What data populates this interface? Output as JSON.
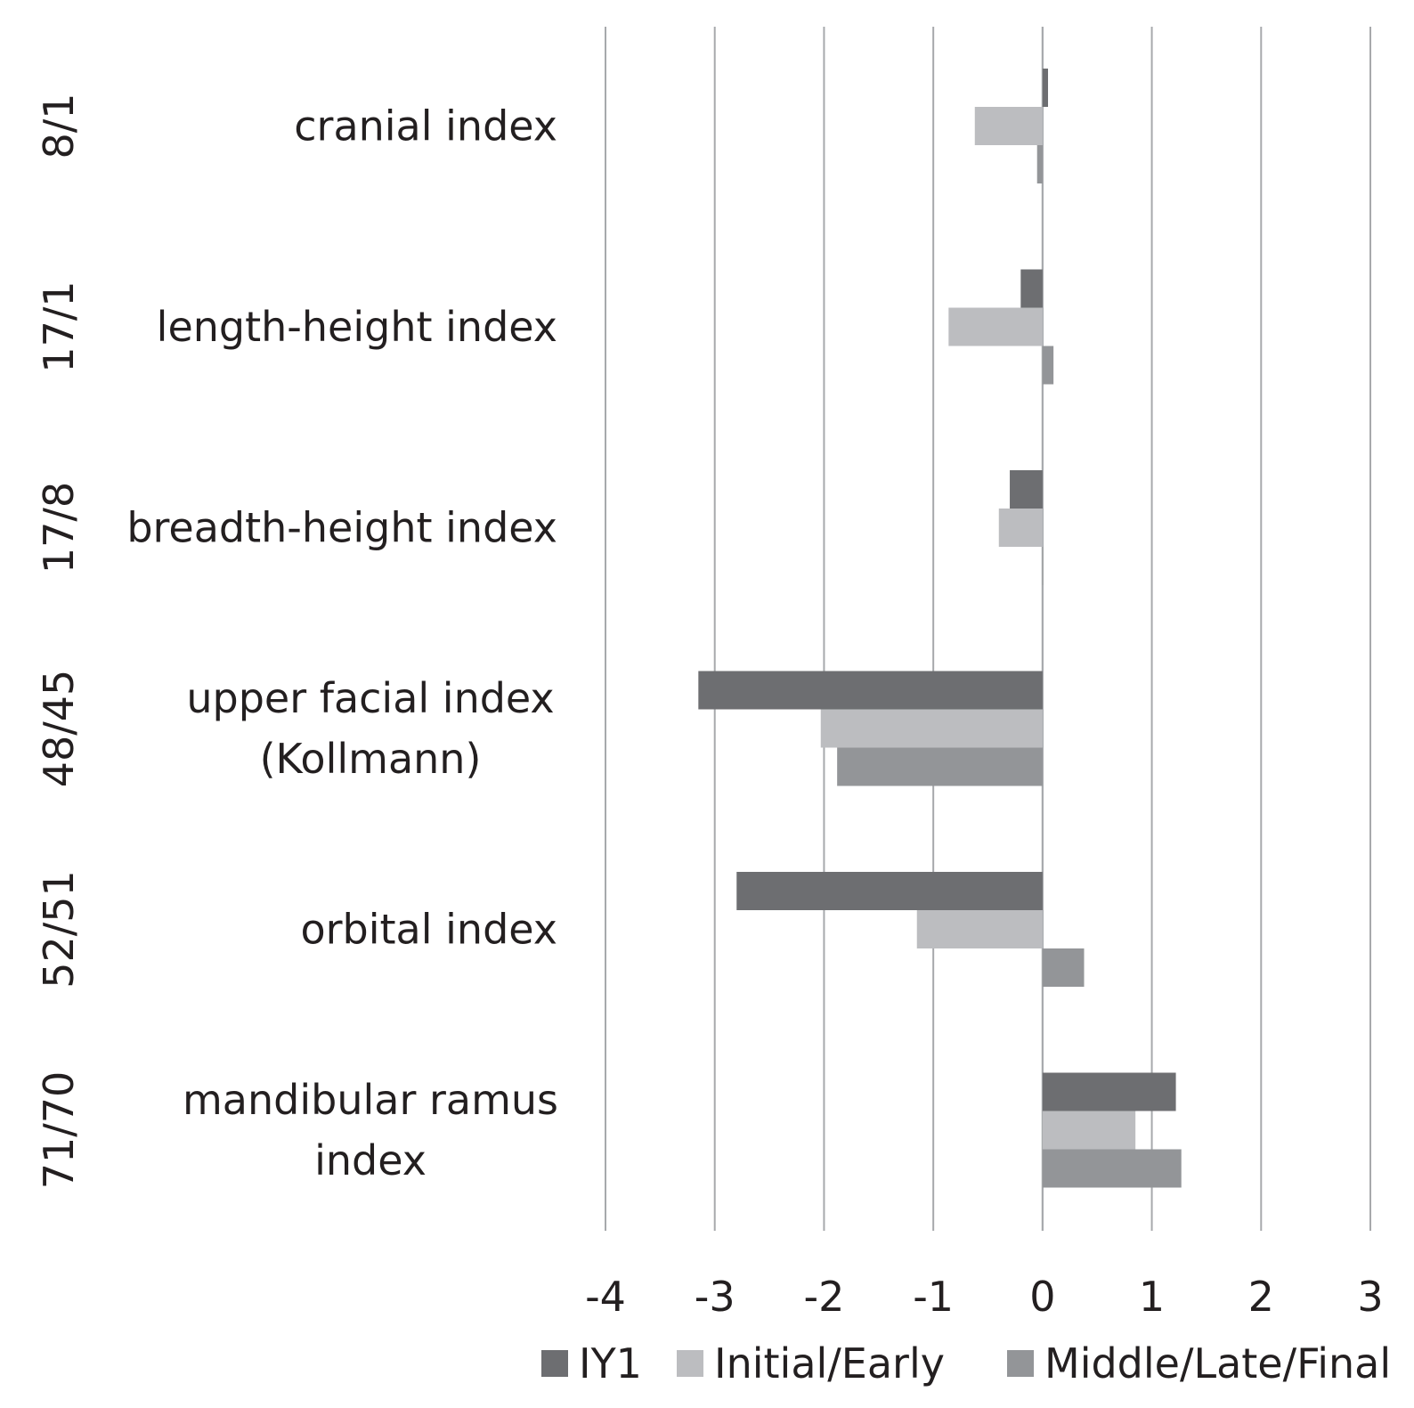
{
  "chart_data": {
    "type": "bar",
    "orientation": "horizontal",
    "categories": [
      {
        "code": "8/1",
        "label_lines": [
          "cranial index"
        ]
      },
      {
        "code": "17/1",
        "label_lines": [
          "length-height index"
        ]
      },
      {
        "code": "17/8",
        "label_lines": [
          "breadth-height index"
        ]
      },
      {
        "code": "48/45",
        "label_lines": [
          "upper facial index",
          "(Kollmann)"
        ]
      },
      {
        "code": "52/51",
        "label_lines": [
          "orbital index"
        ]
      },
      {
        "code": "71/70",
        "label_lines": [
          "mandibular ramus",
          "index"
        ]
      }
    ],
    "series": [
      {
        "name": "IY1",
        "color": "#6d6e71",
        "values": [
          0.05,
          -0.2,
          -0.3,
          -3.15,
          -2.8,
          1.22
        ]
      },
      {
        "name": "Initial/Early",
        "color": "#bcbdc0",
        "values": [
          -0.62,
          -0.86,
          -0.4,
          -2.03,
          -1.15,
          0.85
        ]
      },
      {
        "name": "Middle/Late/Final",
        "color": "#939598",
        "values": [
          -0.05,
          0.1,
          0.0,
          -1.88,
          0.38,
          1.27
        ]
      }
    ],
    "xlim": [
      -4,
      3
    ],
    "xticks": [
      "-4",
      "-3",
      "-2",
      "-1",
      "0",
      "1",
      "2",
      "3"
    ],
    "grid": true,
    "legend_position": "bottom",
    "title": "",
    "xlabel": "",
    "ylabel": ""
  }
}
